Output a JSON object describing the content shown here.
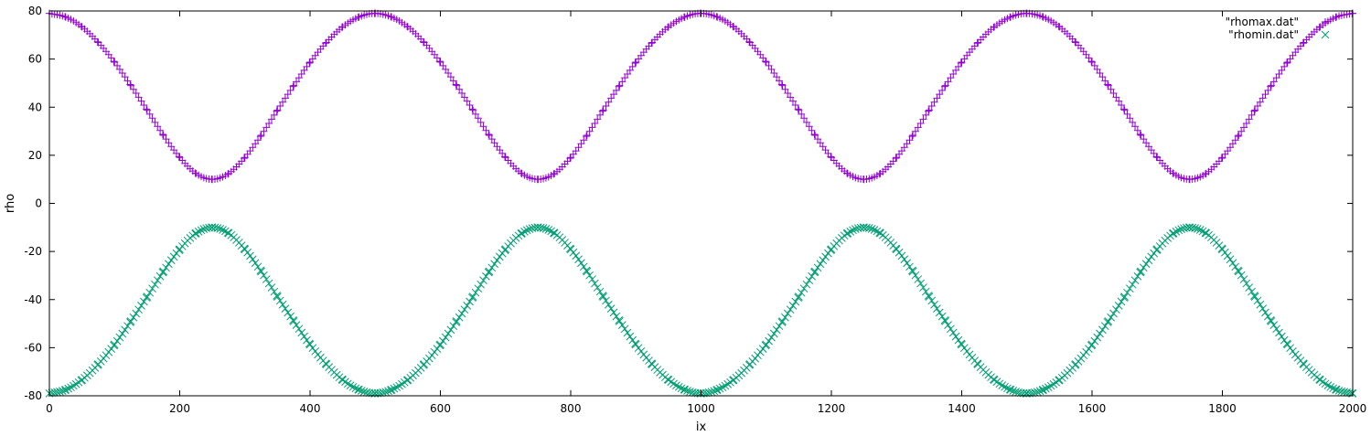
{
  "chart_data": {
    "type": "scatter",
    "title": "",
    "xlabel": "ix",
    "ylabel": "rho",
    "xlim": [
      0,
      2000
    ],
    "ylim": [
      -80,
      80
    ],
    "x_ticks": [
      0,
      200,
      400,
      600,
      800,
      1000,
      1200,
      1400,
      1600,
      1800,
      2000
    ],
    "y_ticks": [
      80,
      60,
      40,
      20,
      0,
      -20,
      -40,
      -60,
      -80
    ],
    "grid": false,
    "legend_position": "top-right",
    "series": [
      {
        "name": "\"rhomax.dat\"",
        "marker": "plus",
        "color": "#9400d3",
        "x": [
          0,
          25,
          50,
          75,
          100,
          125,
          150,
          175,
          200,
          225,
          250,
          275,
          300,
          325,
          350,
          375,
          400,
          425,
          450,
          475,
          500,
          525,
          550,
          575,
          600,
          625,
          650,
          675,
          700,
          725,
          750,
          775,
          800,
          825,
          850,
          875,
          900,
          925,
          950,
          975,
          1000,
          1025,
          1050,
          1075,
          1100,
          1125,
          1150,
          1175,
          1200,
          1225,
          1250,
          1275,
          1300,
          1325,
          1350,
          1375,
          1400,
          1425,
          1450,
          1475,
          1500,
          1525,
          1550,
          1575,
          1600,
          1625,
          1650,
          1675,
          1700,
          1725,
          1750,
          1775,
          1800,
          1825,
          1850,
          1875,
          1900,
          1925,
          1950,
          1975,
          2000
        ],
        "values": [
          79.0,
          77.5,
          73.4,
          66.9,
          58.7,
          49.0,
          38.8,
          28.3,
          19.1,
          12.4,
          10.0,
          12.4,
          19.1,
          28.3,
          38.8,
          49.0,
          58.7,
          66.9,
          73.4,
          77.5,
          79.0,
          77.5,
          73.4,
          66.9,
          58.7,
          49.0,
          38.8,
          28.3,
          19.1,
          12.4,
          10.0,
          12.4,
          19.1,
          28.3,
          38.8,
          49.0,
          58.7,
          66.9,
          73.4,
          77.5,
          79.0,
          77.5,
          73.4,
          66.9,
          58.7,
          49.0,
          38.8,
          28.3,
          19.1,
          12.4,
          10.0,
          12.4,
          19.1,
          28.3,
          38.8,
          49.0,
          58.7,
          66.9,
          73.4,
          77.5,
          79.0,
          77.5,
          73.4,
          66.9,
          58.7,
          49.0,
          38.8,
          28.3,
          19.1,
          12.4,
          10.0,
          12.4,
          19.1,
          28.3,
          38.8,
          49.0,
          58.7,
          66.9,
          73.4,
          77.5,
          79.0
        ]
      },
      {
        "name": "\"rhomin.dat\"",
        "marker": "cross",
        "color": "#009e73",
        "x": [
          0,
          25,
          50,
          75,
          100,
          125,
          150,
          175,
          200,
          225,
          250,
          275,
          300,
          325,
          350,
          375,
          400,
          425,
          450,
          475,
          500,
          525,
          550,
          575,
          600,
          625,
          650,
          675,
          700,
          725,
          750,
          775,
          800,
          825,
          850,
          875,
          900,
          925,
          950,
          975,
          1000,
          1025,
          1050,
          1075,
          1100,
          1125,
          1150,
          1175,
          1200,
          1225,
          1250,
          1275,
          1300,
          1325,
          1350,
          1375,
          1400,
          1425,
          1450,
          1475,
          1500,
          1525,
          1550,
          1575,
          1600,
          1625,
          1650,
          1675,
          1700,
          1725,
          1750,
          1775,
          1800,
          1825,
          1850,
          1875,
          1900,
          1925,
          1950,
          1975,
          2000
        ],
        "values": [
          -79.0,
          -77.5,
          -73.4,
          -66.9,
          -58.7,
          -49.0,
          -38.8,
          -28.3,
          -19.1,
          -12.4,
          -10.0,
          -12.4,
          -19.1,
          -28.3,
          -38.8,
          -49.0,
          -58.7,
          -66.9,
          -73.4,
          -77.5,
          -79.0,
          -77.5,
          -73.4,
          -66.9,
          -58.7,
          -49.0,
          -38.8,
          -28.3,
          -19.1,
          -12.4,
          -10.0,
          -12.4,
          -19.1,
          -28.3,
          -38.8,
          -49.0,
          -58.7,
          -66.9,
          -73.4,
          -77.5,
          -79.0,
          -77.5,
          -73.4,
          -66.9,
          -58.7,
          -49.0,
          -38.8,
          -28.3,
          -19.1,
          -12.4,
          -10.0,
          -12.4,
          -19.1,
          -28.3,
          -38.8,
          -49.0,
          -58.7,
          -66.9,
          -73.4,
          -77.5,
          -79.0,
          -77.5,
          -73.4,
          -66.9,
          -58.7,
          -49.0,
          -38.8,
          -28.3,
          -19.1,
          -12.4,
          -10.0,
          -12.4,
          -19.1,
          -28.3,
          -38.8,
          -49.0,
          -58.7,
          -66.9,
          -73.4,
          -77.5,
          -79.0
        ]
      }
    ]
  }
}
